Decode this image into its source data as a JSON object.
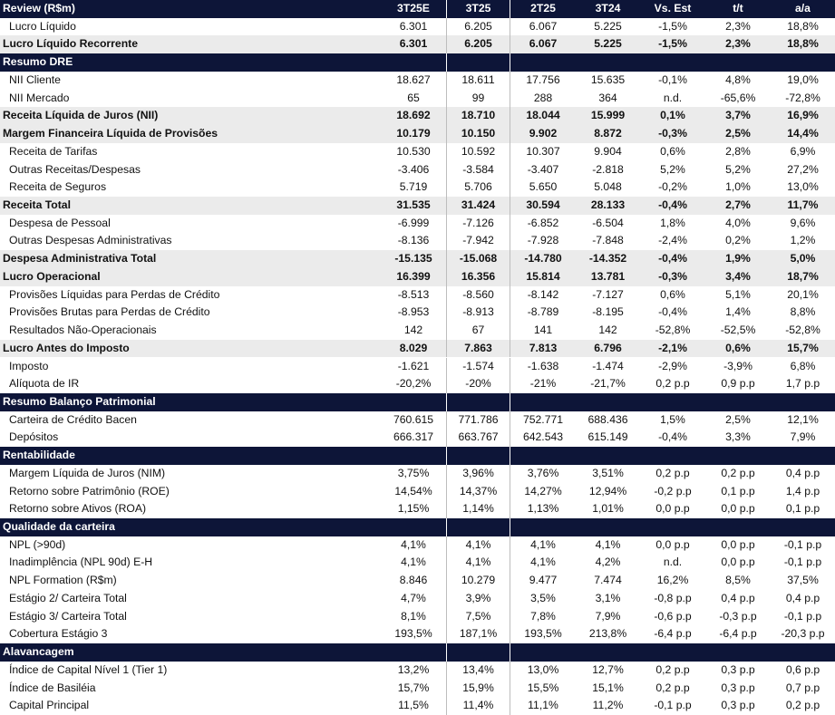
{
  "header": {
    "title": "Review (R$m)",
    "columns": [
      "3T25E",
      "3T25",
      "2T25",
      "3T24",
      "Vs. Est",
      "t/t",
      "a/a"
    ]
  },
  "sections": [
    {
      "rows": [
        {
          "label": "Lucro Líquido",
          "values": [
            "6.301",
            "6.205",
            "6.067",
            "5.225",
            "-1,5%",
            "2,3%",
            "18,8%"
          ]
        },
        {
          "label": "Lucro Líquido Recorrente",
          "bold": true,
          "values": [
            "6.301",
            "6.205",
            "6.067",
            "5.225",
            "-1,5%",
            "2,3%",
            "18,8%"
          ]
        }
      ]
    },
    {
      "title": "Resumo DRE",
      "rows": [
        {
          "label": "NII Cliente",
          "values": [
            "18.627",
            "18.611",
            "17.756",
            "15.635",
            "-0,1%",
            "4,8%",
            "19,0%"
          ]
        },
        {
          "label": "NII Mercado",
          "values": [
            "65",
            "99",
            "288",
            "364",
            "n.d.",
            "-65,6%",
            "-72,8%"
          ]
        },
        {
          "label": "Receita Líquida de Juros (NII)",
          "bold": true,
          "values": [
            "18.692",
            "18.710",
            "18.044",
            "15.999",
            "0,1%",
            "3,7%",
            "16,9%"
          ]
        },
        {
          "label": "Margem Financeira Líquida de Provisões",
          "bold": true,
          "values": [
            "10.179",
            "10.150",
            "9.902",
            "8.872",
            "-0,3%",
            "2,5%",
            "14,4%"
          ]
        },
        {
          "label": "Receita de Tarifas",
          "values": [
            "10.530",
            "10.592",
            "10.307",
            "9.904",
            "0,6%",
            "2,8%",
            "6,9%"
          ]
        },
        {
          "label": "Outras Receitas/Despesas",
          "values": [
            "-3.406",
            "-3.584",
            "-3.407",
            "-2.818",
            "5,2%",
            "5,2%",
            "27,2%"
          ]
        },
        {
          "label": "Receita de Seguros",
          "values": [
            "5.719",
            "5.706",
            "5.650",
            "5.048",
            "-0,2%",
            "1,0%",
            "13,0%"
          ]
        },
        {
          "label": "Receita Total",
          "bold": true,
          "values": [
            "31.535",
            "31.424",
            "30.594",
            "28.133",
            "-0,4%",
            "2,7%",
            "11,7%"
          ]
        },
        {
          "label": "Despesa de Pessoal",
          "values": [
            "-6.999",
            "-7.126",
            "-6.852",
            "-6.504",
            "1,8%",
            "4,0%",
            "9,6%"
          ]
        },
        {
          "label": "Outras Despesas Administrativas",
          "values": [
            "-8.136",
            "-7.942",
            "-7.928",
            "-7.848",
            "-2,4%",
            "0,2%",
            "1,2%"
          ]
        },
        {
          "label": "Despesa Administrativa Total",
          "bold": true,
          "values": [
            "-15.135",
            "-15.068",
            "-14.780",
            "-14.352",
            "-0,4%",
            "1,9%",
            "5,0%"
          ]
        },
        {
          "label": "Lucro Operacional",
          "bold": true,
          "values": [
            "16.399",
            "16.356",
            "15.814",
            "13.781",
            "-0,3%",
            "3,4%",
            "18,7%"
          ]
        },
        {
          "label": "Provisões Líquidas para Perdas de Crédito",
          "values": [
            "-8.513",
            "-8.560",
            "-8.142",
            "-7.127",
            "0,6%",
            "5,1%",
            "20,1%"
          ]
        },
        {
          "label": "Provisões Brutas para Perdas de Crédito",
          "values": [
            "-8.953",
            "-8.913",
            "-8.789",
            "-8.195",
            "-0,4%",
            "1,4%",
            "8,8%"
          ]
        },
        {
          "label": "Resultados Não-Operacionais",
          "values": [
            "142",
            "67",
            "141",
            "142",
            "-52,8%",
            "-52,5%",
            "-52,8%"
          ]
        },
        {
          "label": "Lucro Antes do Imposto",
          "bold": true,
          "values": [
            "8.029",
            "7.863",
            "7.813",
            "6.796",
            "-2,1%",
            "0,6%",
            "15,7%"
          ]
        },
        {
          "label": "Imposto",
          "values": [
            "-1.621",
            "-1.574",
            "-1.638",
            "-1.474",
            "-2,9%",
            "-3,9%",
            "6,8%"
          ]
        },
        {
          "label": "Alíquota de IR",
          "values": [
            "-20,2%",
            "-20%",
            "-21%",
            "-21,7%",
            "0,2 p.p",
            "0,9 p.p",
            "1,7 p.p"
          ]
        }
      ]
    },
    {
      "title": "Resumo Balanço Patrimonial",
      "rows": [
        {
          "label": "Carteira de Crédito Bacen",
          "values": [
            "760.615",
            "771.786",
            "752.771",
            "688.436",
            "1,5%",
            "2,5%",
            "12,1%"
          ]
        },
        {
          "label": "Depósitos",
          "values": [
            "666.317",
            "663.767",
            "642.543",
            "615.149",
            "-0,4%",
            "3,3%",
            "7,9%"
          ]
        }
      ]
    },
    {
      "title": "Rentabilidade",
      "rows": [
        {
          "label": "Margem Líquida de Juros (NIM)",
          "values": [
            "3,75%",
            "3,96%",
            "3,76%",
            "3,51%",
            "0,2 p.p",
            "0,2 p.p",
            "0,4 p.p"
          ]
        },
        {
          "label": "Retorno sobre Patrimônio (ROE)",
          "values": [
            "14,54%",
            "14,37%",
            "14,27%",
            "12,94%",
            "-0,2 p.p",
            "0,1 p.p",
            "1,4 p.p"
          ]
        },
        {
          "label": "Retorno sobre Ativos (ROA)",
          "values": [
            "1,15%",
            "1,14%",
            "1,13%",
            "1,01%",
            "0,0 p.p",
            "0,0 p.p",
            "0,1 p.p"
          ]
        }
      ]
    },
    {
      "title": "Qualidade da carteira",
      "rows": [
        {
          "label": "NPL (>90d)",
          "values": [
            "4,1%",
            "4,1%",
            "4,1%",
            "4,1%",
            "0,0 p.p",
            "0,0 p.p",
            "-0,1 p.p"
          ]
        },
        {
          "label": "Inadimplência (NPL 90d) E-H",
          "values": [
            "4,1%",
            "4,1%",
            "4,1%",
            "4,2%",
            "n.d.",
            "0,0 p.p",
            "-0,1 p.p"
          ]
        },
        {
          "label": "NPL Formation (R$m)",
          "values": [
            "8.846",
            "10.279",
            "9.477",
            "7.474",
            "16,2%",
            "8,5%",
            "37,5%"
          ]
        },
        {
          "label": "Estágio 2/ Carteira Total",
          "values": [
            "4,7%",
            "3,9%",
            "3,5%",
            "3,1%",
            "-0,8 p.p",
            "0,4 p.p",
            "0,4 p.p"
          ]
        },
        {
          "label": "Estágio 3/ Carteira Total",
          "values": [
            "8,1%",
            "7,5%",
            "7,8%",
            "7,9%",
            "-0,6 p.p",
            "-0,3 p.p",
            "-0,1 p.p"
          ]
        },
        {
          "label": "Cobertura Estágio 3",
          "values": [
            "193,5%",
            "187,1%",
            "193,5%",
            "213,8%",
            "-6,4 p.p",
            "-6,4 p.p",
            "-20,3 p.p"
          ]
        }
      ]
    },
    {
      "title": "Alavancagem",
      "rows": [
        {
          "label": "Índice de Capital Nível 1 (Tier 1)",
          "values": [
            "13,2%",
            "13,4%",
            "13,0%",
            "12,7%",
            "0,2 p.p",
            "0,3 p.p",
            "0,6 p.p"
          ]
        },
        {
          "label": "Índice de Basiléia",
          "values": [
            "15,7%",
            "15,9%",
            "15,5%",
            "15,1%",
            "0,2 p.p",
            "0,3 p.p",
            "0,7 p.p"
          ]
        },
        {
          "label": "Capital Principal",
          "values": [
            "11,5%",
            "11,4%",
            "11,1%",
            "11,2%",
            "-0,1 p.p",
            "0,3 p.p",
            "0,2 p.p"
          ]
        }
      ]
    }
  ]
}
